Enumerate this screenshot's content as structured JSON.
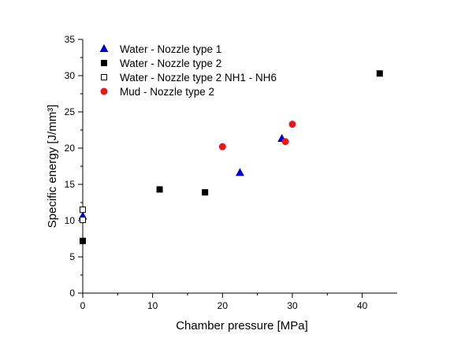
{
  "chart_data": {
    "type": "scatter",
    "xlabel": "Chamber pressure [MPa]",
    "ylabel": "Specific energy [J/mm³]",
    "xlim": [
      0,
      45
    ],
    "ylim": [
      0,
      35
    ],
    "x_ticks": [
      0,
      10,
      20,
      30,
      40
    ],
    "y_ticks": [
      0,
      5,
      10,
      15,
      20,
      25,
      30,
      35
    ],
    "legend_position": "top-left",
    "grid": false,
    "series": [
      {
        "name": "Water - Nozzle type 1",
        "marker": "triangle",
        "color": "#0000cc",
        "filled": true,
        "points": [
          [
            0,
            10.6
          ],
          [
            22.5,
            16.6
          ],
          [
            28.5,
            21.3
          ]
        ]
      },
      {
        "name": "Water - Nozzle type 2",
        "marker": "square",
        "color": "#000000",
        "filled": true,
        "points": [
          [
            0,
            7.2
          ],
          [
            11,
            14.3
          ],
          [
            17.5,
            13.9
          ],
          [
            42.5,
            30.3
          ]
        ]
      },
      {
        "name": "Water - Nozzle type 2 NH1 - NH6",
        "marker": "square",
        "color": "#000000",
        "filled": false,
        "points": [
          [
            0,
            11.5
          ],
          [
            0,
            10.1
          ]
        ]
      },
      {
        "name": "Mud - Nozzle type 2",
        "marker": "circle",
        "color": "#e41a1c",
        "filled": true,
        "points": [
          [
            20,
            20.2
          ],
          [
            29,
            20.9
          ],
          [
            30,
            23.3
          ]
        ]
      }
    ]
  }
}
